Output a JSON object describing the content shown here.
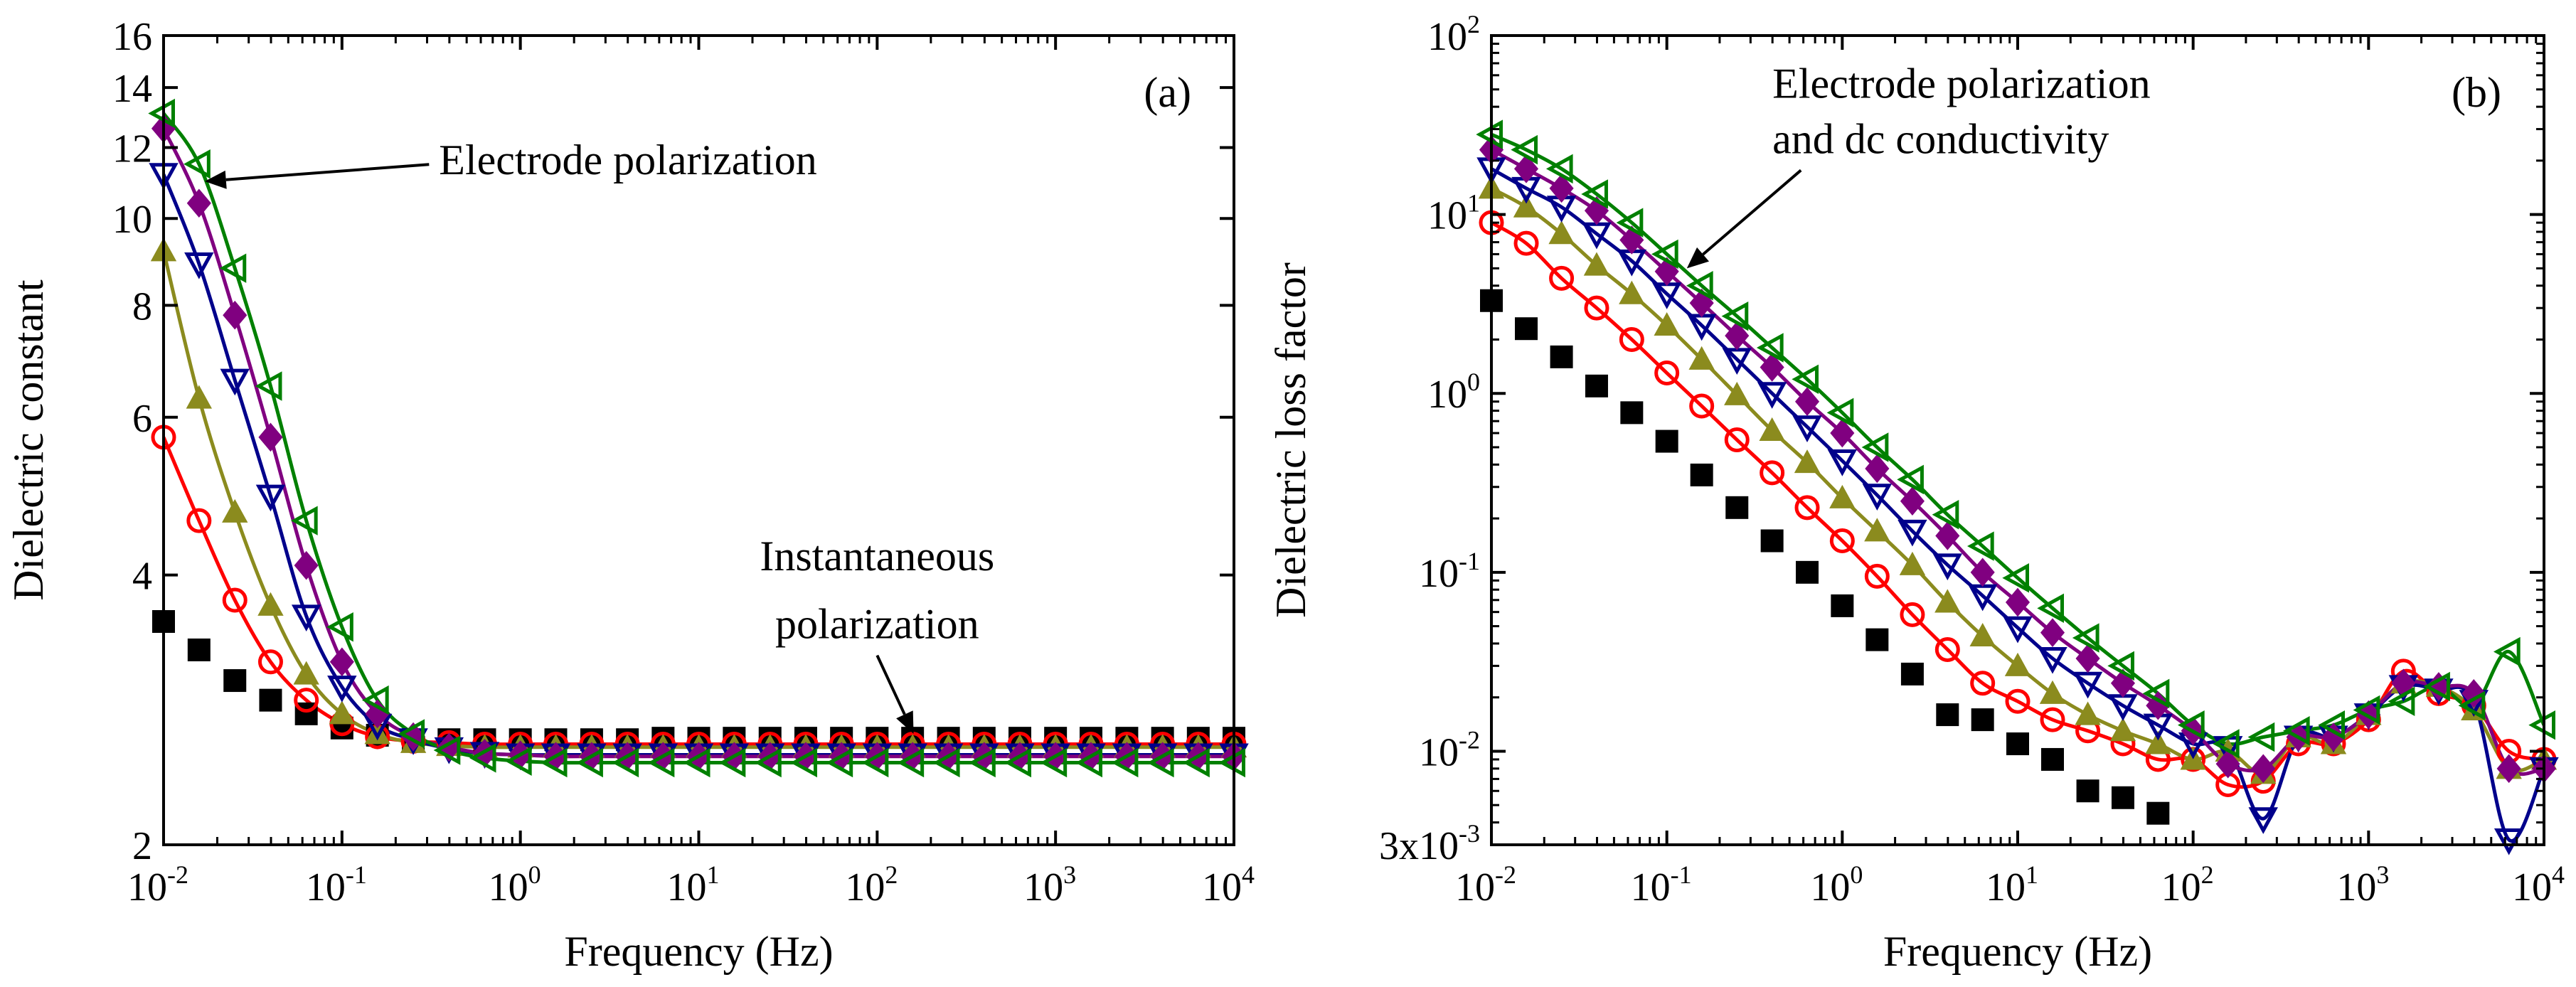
{
  "chart_data": [
    {
      "type": "scatter",
      "panel_tag": "(a)",
      "xlabel": "Frequency (Hz)",
      "ylabel": "Dielectric constant",
      "x_scale": "log",
      "y_scale": "log",
      "xlim": [
        0.01,
        10000
      ],
      "ylim": [
        2,
        16
      ],
      "x_ticks": [
        {
          "value": 0.01,
          "base": "10",
          "exp": "-2"
        },
        {
          "value": 0.1,
          "base": "10",
          "exp": "-1"
        },
        {
          "value": 1,
          "base": "10",
          "exp": "0"
        },
        {
          "value": 10,
          "base": "10",
          "exp": "1"
        },
        {
          "value": 100,
          "base": "10",
          "exp": "2"
        },
        {
          "value": 1000,
          "base": "10",
          "exp": "3"
        },
        {
          "value": 10000,
          "base": "10",
          "exp": "4"
        }
      ],
      "y_ticks": [
        {
          "value": 2,
          "label": "2"
        },
        {
          "value": 4,
          "label": "4"
        },
        {
          "value": 6,
          "label": "6"
        },
        {
          "value": 8,
          "label": "8"
        },
        {
          "value": 10,
          "label": "10"
        },
        {
          "value": 12,
          "label": "12"
        },
        {
          "value": 14,
          "label": "14"
        },
        {
          "value": 16,
          "label": "16"
        }
      ],
      "x": [
        0.01,
        0.0158,
        0.0251,
        0.0398,
        0.0631,
        0.1,
        0.158,
        0.251,
        0.398,
        0.631,
        1,
        1.58,
        2.51,
        3.98,
        6.31,
        10,
        15.8,
        25.1,
        39.8,
        63.1,
        100,
        158,
        251,
        398,
        631,
        1000,
        1580,
        2510,
        3980,
        6310,
        10000
      ],
      "series": [
        {
          "marker": "square-filled",
          "color": "#000000",
          "fit": false,
          "values": [
            3.55,
            3.3,
            3.05,
            2.9,
            2.8,
            2.7,
            2.65,
            2.62,
            2.62,
            2.62,
            2.62,
            2.62,
            2.62,
            2.62,
            2.63,
            2.63,
            2.63,
            2.63,
            2.63,
            2.63,
            2.63,
            2.63,
            2.63,
            2.63,
            2.63,
            2.63,
            2.63,
            2.63,
            2.63,
            2.63,
            2.63
          ]
        },
        {
          "marker": "circle-open",
          "color": "#ff0000",
          "fit": true,
          "values": [
            5.7,
            4.6,
            3.75,
            3.2,
            2.9,
            2.73,
            2.64,
            2.61,
            2.6,
            2.59,
            2.59,
            2.59,
            2.59,
            2.59,
            2.59,
            2.59,
            2.59,
            2.59,
            2.59,
            2.59,
            2.59,
            2.59,
            2.59,
            2.59,
            2.59,
            2.59,
            2.59,
            2.59,
            2.59,
            2.59,
            2.59
          ]
        },
        {
          "marker": "triangle-up-filled",
          "color": "#8b8b1e",
          "fit": true,
          "values": [
            9.2,
            6.3,
            4.7,
            3.7,
            3.1,
            2.8,
            2.66,
            2.6,
            2.58,
            2.57,
            2.57,
            2.57,
            2.57,
            2.57,
            2.57,
            2.57,
            2.57,
            2.57,
            2.57,
            2.57,
            2.57,
            2.57,
            2.57,
            2.57,
            2.57,
            2.57,
            2.57,
            2.57,
            2.57,
            2.57,
            2.57
          ]
        },
        {
          "marker": "triangle-down-open",
          "color": "#00008b",
          "fit": true,
          "values": [
            11.2,
            8.9,
            6.6,
            4.9,
            3.6,
            3.0,
            2.72,
            2.62,
            2.56,
            2.53,
            2.52,
            2.52,
            2.52,
            2.52,
            2.52,
            2.52,
            2.52,
            2.52,
            2.52,
            2.52,
            2.52,
            2.52,
            2.52,
            2.52,
            2.52,
            2.52,
            2.52,
            2.52,
            2.52,
            2.52,
            2.52
          ]
        },
        {
          "marker": "diamond-filled",
          "color": "#800080",
          "fit": true,
          "values": [
            12.6,
            10.4,
            7.8,
            5.7,
            4.1,
            3.2,
            2.8,
            2.64,
            2.57,
            2.53,
            2.52,
            2.51,
            2.51,
            2.51,
            2.51,
            2.51,
            2.51,
            2.51,
            2.51,
            2.51,
            2.51,
            2.51,
            2.51,
            2.51,
            2.51,
            2.51,
            2.51,
            2.51,
            2.51,
            2.51,
            2.51
          ]
        },
        {
          "marker": "triangle-left-open",
          "color": "#008000",
          "fit": true,
          "values": [
            13.1,
            11.5,
            8.8,
            6.5,
            4.6,
            3.5,
            2.9,
            2.66,
            2.55,
            2.5,
            2.48,
            2.47,
            2.47,
            2.47,
            2.47,
            2.47,
            2.47,
            2.47,
            2.47,
            2.47,
            2.47,
            2.47,
            2.47,
            2.47,
            2.47,
            2.47,
            2.47,
            2.47,
            2.47,
            2.47,
            2.47
          ]
        }
      ],
      "annotations": [
        {
          "text": "Electrode polarization",
          "x": 0.35,
          "y": 11.2,
          "arrow_to": [
            0.017,
            11.0
          ]
        },
        {
          "text": "Instantaneous",
          "x": 100,
          "y": 4.05
        },
        {
          "text": "polarization",
          "x": 100,
          "y": 3.4,
          "arrow_to": [
            160,
            2.66
          ]
        }
      ]
    },
    {
      "type": "scatter",
      "panel_tag": "(b)",
      "xlabel": "Frequency (Hz)",
      "ylabel": "Dielectric loss factor",
      "x_scale": "log",
      "y_scale": "log",
      "xlim": [
        0.01,
        10000
      ],
      "ylim": [
        0.003,
        100
      ],
      "x_ticks": [
        {
          "value": 0.01,
          "base": "10",
          "exp": "-2"
        },
        {
          "value": 0.1,
          "base": "10",
          "exp": "-1"
        },
        {
          "value": 1,
          "base": "10",
          "exp": "0"
        },
        {
          "value": 10,
          "base": "10",
          "exp": "1"
        },
        {
          "value": 100,
          "base": "10",
          "exp": "2"
        },
        {
          "value": 1000,
          "base": "10",
          "exp": "3"
        },
        {
          "value": 10000,
          "base": "10",
          "exp": "4"
        }
      ],
      "y_ticks": [
        {
          "value": 0.003,
          "base": "3x10",
          "exp": "-3"
        },
        {
          "value": 0.01,
          "base": "10",
          "exp": "-2"
        },
        {
          "value": 0.1,
          "base": "10",
          "exp": "-1"
        },
        {
          "value": 1,
          "base": "10",
          "exp": "0"
        },
        {
          "value": 10,
          "base": "10",
          "exp": "1"
        },
        {
          "value": 100,
          "base": "10",
          "exp": "2"
        }
      ],
      "x": [
        0.01,
        0.0158,
        0.0251,
        0.0398,
        0.0631,
        0.1,
        0.158,
        0.251,
        0.398,
        0.631,
        1,
        1.58,
        2.51,
        3.98,
        6.31,
        10,
        15.8,
        25.1,
        39.8,
        63.1,
        100,
        158,
        251,
        398,
        631,
        1000,
        1580,
        2510,
        3980,
        6310,
        10000
      ],
      "series": [
        {
          "marker": "square-filled",
          "color": "#000000",
          "fit": false,
          "values": [
            3.3,
            2.3,
            1.6,
            1.1,
            0.78,
            0.54,
            0.35,
            0.23,
            0.15,
            0.1,
            0.065,
            0.042,
            0.027,
            0.016,
            0.015,
            0.011,
            0.009,
            0.006,
            0.0055,
            0.0045,
            null,
            null,
            null,
            null,
            null,
            null,
            null,
            null,
            null,
            null,
            null
          ]
        },
        {
          "marker": "circle-open",
          "color": "#ff0000",
          "fit": true,
          "values": [
            9.0,
            6.9,
            4.4,
            3.0,
            2.0,
            1.3,
            0.85,
            0.55,
            0.36,
            0.23,
            0.15,
            0.095,
            0.058,
            0.037,
            0.024,
            0.019,
            0.015,
            0.013,
            0.011,
            0.009,
            0.009,
            0.0065,
            0.0068,
            0.011,
            0.011,
            0.015,
            0.028,
            0.021,
            0.018,
            0.01,
            0.009
          ]
        },
        {
          "marker": "triangle-up-filled",
          "color": "#8b8b1e",
          "fit": true,
          "values": [
            14,
            11,
            7.8,
            5.2,
            3.6,
            2.4,
            1.55,
            0.98,
            0.62,
            0.41,
            0.26,
            0.17,
            0.11,
            0.068,
            0.044,
            0.03,
            0.021,
            0.016,
            0.013,
            0.011,
            0.009,
            0.01,
            0.0075,
            0.012,
            0.011,
            0.016,
            0.024,
            0.023,
            0.017,
            0.008,
            0.009
          ]
        },
        {
          "marker": "triangle-down-open",
          "color": "#00008b",
          "fit": true,
          "values": [
            18,
            14,
            11,
            7.8,
            5.5,
            3.6,
            2.4,
            1.55,
            1.0,
            0.65,
            0.42,
            0.27,
            0.17,
            0.11,
            0.074,
            0.049,
            0.033,
            0.024,
            0.018,
            0.014,
            0.011,
            0.0105,
            0.0042,
            0.012,
            0.012,
            0.016,
            0.023,
            0.022,
            0.019,
            0.0032,
            0.008
          ]
        },
        {
          "marker": "diamond-filled",
          "color": "#800080",
          "fit": true,
          "values": [
            23,
            18,
            14,
            10.5,
            7.2,
            4.8,
            3.2,
            2.1,
            1.4,
            0.9,
            0.6,
            0.38,
            0.25,
            0.16,
            0.1,
            0.068,
            0.046,
            0.033,
            0.024,
            0.018,
            0.013,
            0.0085,
            0.008,
            0.012,
            0.012,
            0.016,
            0.024,
            0.023,
            0.021,
            0.008,
            0.008
          ]
        },
        {
          "marker": "triangle-left-open",
          "color": "#008000",
          "fit": true,
          "values": [
            28,
            23,
            18,
            13,
            9,
            6,
            4,
            2.7,
            1.8,
            1.2,
            0.78,
            0.5,
            0.33,
            0.21,
            0.14,
            0.093,
            0.063,
            0.043,
            0.03,
            0.021,
            0.014,
            0.011,
            0.012,
            0.013,
            0.014,
            0.017,
            0.019,
            0.023,
            0.018,
            0.036,
            0.014
          ]
        }
      ],
      "annotations": [
        {
          "text": "Electrode polarization",
          "x": 0.4,
          "y": 45
        },
        {
          "text": "and dc conductivity",
          "x": 0.4,
          "y": 22,
          "arrow_to": [
            0.13,
            5.0
          ]
        }
      ]
    }
  ]
}
